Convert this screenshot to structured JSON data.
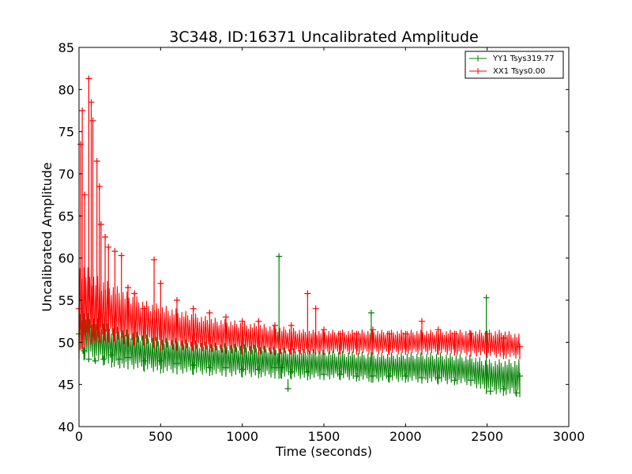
{
  "chart_data": {
    "type": "line",
    "title": "3C348, ID:16371 Uncalibrated Amplitude",
    "xlabel": "Time (seconds)",
    "ylabel": "Uncalibrated Amplitude",
    "xlim": [
      0,
      3000
    ],
    "ylim": [
      40,
      85
    ],
    "xticks": [
      "0",
      "500",
      "1000",
      "1500",
      "2000",
      "2500",
      "3000"
    ],
    "yticks": [
      "40",
      "45",
      "50",
      "55",
      "60",
      "65",
      "70",
      "75",
      "80",
      "85"
    ],
    "grid": false,
    "legend_position": "top-right",
    "marker": "+",
    "series": [
      {
        "name": "YY1 Tsys319.77",
        "color": "#008000",
        "points": [
          [
            0,
            51
          ],
          [
            30,
            49
          ],
          [
            60,
            48
          ],
          [
            100,
            47.8
          ],
          [
            150,
            48
          ],
          [
            200,
            48.5
          ],
          [
            250,
            48
          ],
          [
            300,
            48.2
          ],
          [
            400,
            47.8
          ],
          [
            500,
            47.8
          ],
          [
            600,
            47.5
          ],
          [
            700,
            47.3
          ],
          [
            800,
            47.0
          ],
          [
            900,
            47.0
          ],
          [
            1000,
            46.8
          ],
          [
            1100,
            46.8
          ],
          [
            1200,
            47.0
          ],
          [
            1225,
            60.2
          ],
          [
            1240,
            47.0
          ],
          [
            1280,
            44.5
          ],
          [
            1300,
            46.5
          ],
          [
            1400,
            46.5
          ],
          [
            1500,
            46.2
          ],
          [
            1600,
            46.2
          ],
          [
            1700,
            46.0
          ],
          [
            1790,
            53.5
          ],
          [
            1800,
            46.0
          ],
          [
            1900,
            46.0
          ],
          [
            2000,
            46.0
          ],
          [
            2100,
            45.8
          ],
          [
            2200,
            45.8
          ],
          [
            2300,
            45.5
          ],
          [
            2400,
            45.5
          ],
          [
            2495,
            55.3
          ],
          [
            2520,
            44.2
          ],
          [
            2600,
            44.5
          ],
          [
            2680,
            44.0
          ],
          [
            2700,
            46.0
          ]
        ],
        "upper": [
          [
            0,
            54
          ],
          [
            100,
            53
          ],
          [
            200,
            52
          ],
          [
            300,
            51.5
          ],
          [
            400,
            51
          ],
          [
            500,
            50.5
          ],
          [
            600,
            50.5
          ],
          [
            800,
            50.0
          ],
          [
            1000,
            49.8
          ],
          [
            1200,
            49.5
          ],
          [
            1400,
            49.2
          ],
          [
            1600,
            49.0
          ],
          [
            1800,
            48.8
          ],
          [
            2000,
            48.8
          ],
          [
            2200,
            48.8
          ],
          [
            2400,
            48.5
          ],
          [
            2500,
            48.0
          ],
          [
            2700,
            48.0
          ]
        ],
        "lower": [
          [
            0,
            48
          ],
          [
            100,
            47.5
          ],
          [
            200,
            47
          ],
          [
            300,
            46.8
          ],
          [
            400,
            46.5
          ],
          [
            500,
            46.3
          ],
          [
            600,
            46.2
          ],
          [
            800,
            46.0
          ],
          [
            1000,
            45.8
          ],
          [
            1200,
            45.7
          ],
          [
            1400,
            45.5
          ],
          [
            1600,
            45.5
          ],
          [
            1800,
            45.2
          ],
          [
            2000,
            45.2
          ],
          [
            2200,
            45.0
          ],
          [
            2400,
            44.8
          ],
          [
            2500,
            43.8
          ],
          [
            2700,
            43.5
          ]
        ]
      },
      {
        "name": "XX1 Tsys0.00",
        "color": "#ff0000",
        "points": [
          [
            0,
            54
          ],
          [
            10,
            73.5
          ],
          [
            20,
            77.5
          ],
          [
            35,
            67.5
          ],
          [
            60,
            81.3
          ],
          [
            75,
            78.5
          ],
          [
            85,
            76.3
          ],
          [
            110,
            71.5
          ],
          [
            125,
            68.5
          ],
          [
            135,
            64.0
          ],
          [
            160,
            62.5
          ],
          [
            180,
            61.3
          ],
          [
            220,
            60.8
          ],
          [
            260,
            60.3
          ],
          [
            300,
            56.5
          ],
          [
            340,
            55.8
          ],
          [
            400,
            54.0
          ],
          [
            460,
            59.8
          ],
          [
            500,
            57.0
          ],
          [
            600,
            55.0
          ],
          [
            700,
            54.0
          ],
          [
            800,
            53.5
          ],
          [
            900,
            53.0
          ],
          [
            1000,
            52.5
          ],
          [
            1100,
            52.5
          ],
          [
            1200,
            52.0
          ],
          [
            1300,
            52.0
          ],
          [
            1400,
            55.8
          ],
          [
            1450,
            54.0
          ],
          [
            1500,
            51.5
          ],
          [
            1600,
            51.0
          ],
          [
            1700,
            51.0
          ],
          [
            1800,
            51.5
          ],
          [
            1900,
            51.0
          ],
          [
            2000,
            51.0
          ],
          [
            2100,
            52.5
          ],
          [
            2200,
            51.5
          ],
          [
            2300,
            51.0
          ],
          [
            2400,
            51.0
          ],
          [
            2500,
            51.0
          ],
          [
            2600,
            50.5
          ],
          [
            2700,
            49.5
          ]
        ],
        "upper": [
          [
            0,
            60
          ],
          [
            100,
            58
          ],
          [
            200,
            57
          ],
          [
            300,
            56
          ],
          [
            400,
            55
          ],
          [
            500,
            54.5
          ],
          [
            600,
            54
          ],
          [
            800,
            53
          ],
          [
            1000,
            52.5
          ],
          [
            1200,
            52
          ],
          [
            1400,
            51.5
          ],
          [
            1600,
            51.5
          ],
          [
            1800,
            51.5
          ],
          [
            2000,
            51.5
          ],
          [
            2200,
            51.5
          ],
          [
            2400,
            51.5
          ],
          [
            2600,
            51.5
          ],
          [
            2700,
            51
          ]
        ],
        "lower": [
          [
            0,
            49
          ],
          [
            100,
            50
          ],
          [
            200,
            50
          ],
          [
            300,
            49.5
          ],
          [
            400,
            49.5
          ],
          [
            500,
            49
          ],
          [
            600,
            49
          ],
          [
            800,
            48.8
          ],
          [
            1000,
            48.5
          ],
          [
            1200,
            48.5
          ],
          [
            1400,
            48.5
          ],
          [
            1600,
            48.5
          ],
          [
            1800,
            48.5
          ],
          [
            2000,
            48.5
          ],
          [
            2200,
            48.5
          ],
          [
            2400,
            48.3
          ],
          [
            2600,
            48
          ],
          [
            2700,
            48
          ]
        ]
      }
    ]
  }
}
